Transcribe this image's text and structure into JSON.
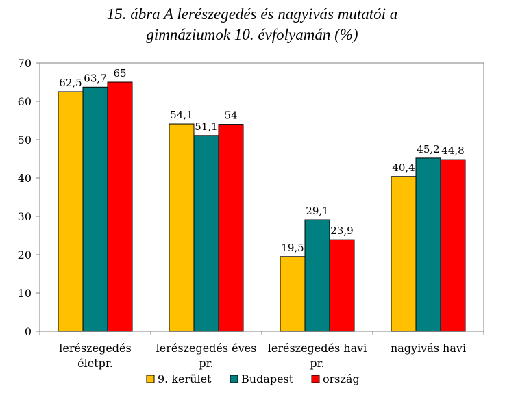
{
  "chart_data": {
    "type": "bar",
    "title_lines": [
      "15. ábra A lerészegedés és nagyivás mutatói a",
      "gimnáziumok 10. évfolyamán (%)"
    ],
    "categories": [
      [
        "lerészegedés",
        "életpr."
      ],
      [
        "lerészegedés éves",
        "pr."
      ],
      [
        "lerészegedés havi",
        "pr."
      ],
      [
        "nagyivás havi"
      ]
    ],
    "series": [
      {
        "name": "9. kerület",
        "color": "#FFC000",
        "values": [
          62.5,
          54.1,
          19.5,
          40.4
        ],
        "labels": [
          "62,5",
          "54,1",
          "19,5",
          "40,4"
        ]
      },
      {
        "name": "Budapest",
        "color": "#008080",
        "values": [
          63.7,
          51.1,
          29.1,
          45.2
        ],
        "labels": [
          "63,7",
          "51,1",
          "29,1",
          "45,2"
        ]
      },
      {
        "name": "ország",
        "color": "#FF0000",
        "values": [
          65,
          54,
          23.9,
          44.8
        ],
        "labels": [
          "65",
          "54",
          "23,9",
          "44,8"
        ]
      }
    ],
    "ylim": [
      0,
      70
    ],
    "yticks": [
      0,
      10,
      20,
      30,
      40,
      50,
      60,
      70
    ],
    "grid": false,
    "legend_position": "bottom",
    "xlabel": "",
    "ylabel": ""
  }
}
